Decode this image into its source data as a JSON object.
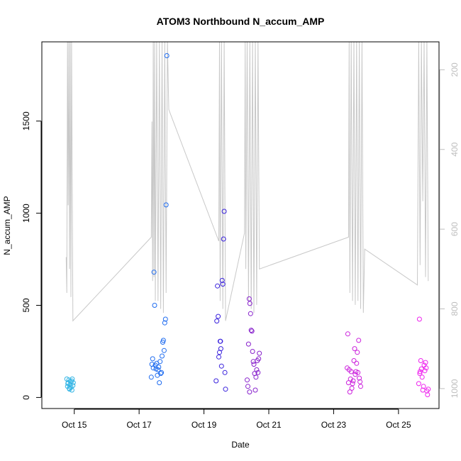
{
  "chart_data": {
    "type": "scatter",
    "title": "ATOM3 Northbound N_accum_AMP",
    "xlabel": "Date",
    "ylabel": "N_accum_AMP",
    "x_axis_type": "date",
    "xlim": [
      "2015-10-14 00:00",
      "2015-10-26 06:00"
    ],
    "x_ticks": [
      "2015-10-15",
      "2015-10-17",
      "2015-10-19",
      "2015-10-21",
      "2015-10-23",
      "2015-10-25"
    ],
    "x_tick_labels": [
      "Oct 15",
      "Oct 17",
      "Oct 19",
      "Oct 21",
      "Oct 23",
      "Oct 25"
    ],
    "ylim": [
      -60,
      1930
    ],
    "y_ticks": [
      0,
      500,
      1000,
      1500
    ],
    "y_tick_labels": [
      "0",
      "500",
      "1000",
      "1500"
    ],
    "y2_axis": {
      "reversed": true,
      "range": [
        130,
        1050
      ],
      "ticks": [
        200,
        400,
        600,
        800,
        1000
      ],
      "tick_labels": [
        "200",
        "400",
        "600",
        "800",
        "1000"
      ],
      "color": "#bebebe"
    },
    "grid": false,
    "legend": "none",
    "marker": "open-circle",
    "color_scale": [
      "#33b5e5",
      "#1f6cf0",
      "#2222cc",
      "#8822cc",
      "#cc22dd",
      "#ee22ee"
    ],
    "series": [
      {
        "color": "#33b5e5",
        "points": [
          [
            "2015-10-14 18:30",
            100
          ],
          [
            "2015-10-14 19:00",
            60
          ],
          [
            "2015-10-14 19:30",
            80
          ],
          [
            "2015-10-14 20:00",
            95
          ],
          [
            "2015-10-14 20:30",
            45
          ],
          [
            "2015-10-14 21:00",
            70
          ],
          [
            "2015-10-14 21:30",
            55
          ],
          [
            "2015-10-14 22:00",
            90
          ],
          [
            "2015-10-14 22:30",
            100
          ],
          [
            "2015-10-14 23:00",
            65
          ],
          [
            "2015-10-14 19:15",
            75
          ],
          [
            "2015-10-14 20:15",
            50
          ],
          [
            "2015-10-14 21:15",
            85
          ],
          [
            "2015-10-14 22:15",
            40
          ],
          [
            "2015-10-14 23:15",
            80
          ]
        ]
      },
      {
        "color": "#1f6cf0",
        "points": [
          [
            "2015-10-17 09:00",
            110
          ],
          [
            "2015-10-17 09:30",
            180
          ],
          [
            "2015-10-17 10:00",
            210
          ],
          [
            "2015-10-17 10:30",
            160
          ],
          [
            "2015-10-17 11:00",
            680
          ],
          [
            "2015-10-17 11:30",
            500
          ],
          [
            "2015-10-17 12:00",
            175
          ],
          [
            "2015-10-17 12:30",
            155
          ],
          [
            "2015-10-17 13:00",
            185
          ],
          [
            "2015-10-17 13:30",
            120
          ],
          [
            "2015-10-17 14:00",
            150
          ],
          [
            "2015-10-17 14:30",
            165
          ],
          [
            "2015-10-17 15:00",
            80
          ],
          [
            "2015-10-17 15:30",
            195
          ],
          [
            "2015-10-17 16:00",
            130
          ],
          [
            "2015-10-17 16:30",
            135
          ],
          [
            "2015-10-17 17:00",
            225
          ],
          [
            "2015-10-17 17:30",
            300
          ],
          [
            "2015-10-17 18:00",
            310
          ],
          [
            "2015-10-17 18:30",
            255
          ],
          [
            "2015-10-17 19:00",
            405
          ],
          [
            "2015-10-17 19:30",
            425
          ],
          [
            "2015-10-17 20:00",
            1045
          ],
          [
            "2015-10-17 20:30",
            1855
          ]
        ]
      },
      {
        "color": "#3a22dd",
        "points": [
          [
            "2015-10-19 09:00",
            90
          ],
          [
            "2015-10-19 09:30",
            415
          ],
          [
            "2015-10-19 10:00",
            605
          ],
          [
            "2015-10-19 10:30",
            440
          ],
          [
            "2015-10-19 11:00",
            220
          ],
          [
            "2015-10-19 11:30",
            245
          ],
          [
            "2015-10-19 12:00",
            305
          ],
          [
            "2015-10-19 12:30",
            265
          ],
          [
            "2015-10-19 13:00",
            170
          ],
          [
            "2015-10-19 13:30",
            635
          ],
          [
            "2015-10-19 14:00",
            615
          ],
          [
            "2015-10-19 14:30",
            860
          ],
          [
            "2015-10-19 15:00",
            1010
          ],
          [
            "2015-10-19 15:30",
            135
          ],
          [
            "2015-10-19 16:00",
            45
          ],
          [
            "2015-10-19 12:15",
            305
          ]
        ]
      },
      {
        "color": "#8822cc",
        "points": [
          [
            "2015-10-20 08:00",
            95
          ],
          [
            "2015-10-20 08:30",
            60
          ],
          [
            "2015-10-20 09:00",
            290
          ],
          [
            "2015-10-20 09:30",
            535
          ],
          [
            "2015-10-20 10:00",
            510
          ],
          [
            "2015-10-20 10:30",
            455
          ],
          [
            "2015-10-20 11:00",
            365
          ],
          [
            "2015-10-20 11:30",
            360
          ],
          [
            "2015-10-20 12:00",
            250
          ],
          [
            "2015-10-20 12:30",
            195
          ],
          [
            "2015-10-20 13:00",
            180
          ],
          [
            "2015-10-20 13:30",
            130
          ],
          [
            "2015-10-20 14:00",
            40
          ],
          [
            "2015-10-20 14:30",
            110
          ],
          [
            "2015-10-20 15:00",
            150
          ],
          [
            "2015-10-20 15:30",
            200
          ],
          [
            "2015-10-20 16:00",
            135
          ],
          [
            "2015-10-20 16:30",
            210
          ],
          [
            "2015-10-20 17:00",
            240
          ],
          [
            "2015-10-20 09:45",
            30
          ]
        ]
      },
      {
        "color": "#cc22dd",
        "points": [
          [
            "2015-10-23 10:00",
            160
          ],
          [
            "2015-10-23 10:30",
            345
          ],
          [
            "2015-10-23 11:00",
            80
          ],
          [
            "2015-10-23 11:30",
            150
          ],
          [
            "2015-10-23 12:00",
            30
          ],
          [
            "2015-10-23 12:30",
            100
          ],
          [
            "2015-10-23 13:00",
            140
          ],
          [
            "2015-10-23 13:30",
            50
          ],
          [
            "2015-10-23 14:00",
            75
          ],
          [
            "2015-10-23 14:30",
            90
          ],
          [
            "2015-10-23 15:00",
            200
          ],
          [
            "2015-10-23 15:30",
            265
          ],
          [
            "2015-10-23 16:00",
            125
          ],
          [
            "2015-10-23 16:30",
            140
          ],
          [
            "2015-10-23 17:00",
            185
          ],
          [
            "2015-10-23 17:30",
            245
          ],
          [
            "2015-10-23 18:00",
            135
          ],
          [
            "2015-10-23 18:30",
            310
          ],
          [
            "2015-10-23 19:00",
            105
          ],
          [
            "2015-10-23 19:30",
            85
          ],
          [
            "2015-10-23 20:00",
            60
          ]
        ]
      },
      {
        "color": "#ee22ee",
        "points": [
          [
            "2015-10-25 15:00",
            75
          ],
          [
            "2015-10-25 15:30",
            425
          ],
          [
            "2015-10-25 16:00",
            140
          ],
          [
            "2015-10-25 16:30",
            200
          ],
          [
            "2015-10-25 17:00",
            155
          ],
          [
            "2015-10-25 17:30",
            110
          ],
          [
            "2015-10-25 18:00",
            40
          ],
          [
            "2015-10-25 18:30",
            60
          ],
          [
            "2015-10-25 19:00",
            175
          ],
          [
            "2015-10-25 19:30",
            145
          ],
          [
            "2015-10-25 20:00",
            190
          ],
          [
            "2015-10-25 20:30",
            160
          ],
          [
            "2015-10-25 21:00",
            35
          ],
          [
            "2015-10-25 21:30",
            15
          ],
          [
            "2015-10-25 22:00",
            45
          ],
          [
            "2015-10-25 15:45",
            130
          ]
        ]
      }
    ],
    "secondary_line": {
      "color": "#c8c8c8",
      "axis": "right",
      "points": [
        [
          "2015-10-14 18:00",
          670
        ],
        [
          "2015-10-14 18:30",
          760
        ],
        [
          "2015-10-14 19:00",
          130
        ],
        [
          "2015-10-14 19:30",
          540
        ],
        [
          "2015-10-14 20:00",
          130
        ],
        [
          "2015-10-14 20:30",
          700
        ],
        [
          "2015-10-14 21:00",
          130
        ],
        [
          "2015-10-14 21:30",
          770
        ],
        [
          "2015-10-14 22:00",
          130
        ],
        [
          "2015-10-14 23:00",
          830
        ],
        [
          "2015-10-17 09:00",
          620
        ],
        [
          "2015-10-17 09:30",
          330
        ],
        [
          "2015-10-17 10:00",
          730
        ],
        [
          "2015-10-17 10:30",
          130
        ],
        [
          "2015-10-17 11:00",
          720
        ],
        [
          "2015-10-17 11:30",
          130
        ],
        [
          "2015-10-17 12:00",
          780
        ],
        [
          "2015-10-17 13:00",
          130
        ],
        [
          "2015-10-17 14:00",
          780
        ],
        [
          "2015-10-17 15:00",
          130
        ],
        [
          "2015-10-17 16:00",
          800
        ],
        [
          "2015-10-17 17:00",
          130
        ],
        [
          "2015-10-17 18:00",
          810
        ],
        [
          "2015-10-17 19:00",
          130
        ],
        [
          "2015-10-17 20:00",
          760
        ],
        [
          "2015-10-17 21:00",
          130
        ],
        [
          "2015-10-17 22:00",
          300
        ],
        [
          "2015-10-19 11:00",
          630
        ],
        [
          "2015-10-19 11:30",
          130
        ],
        [
          "2015-10-19 12:00",
          780
        ],
        [
          "2015-10-19 13:00",
          130
        ],
        [
          "2015-10-19 14:00",
          800
        ],
        [
          "2015-10-19 15:00",
          130
        ],
        [
          "2015-10-19 16:00",
          830
        ],
        [
          "2015-10-20 06:00",
          610
        ],
        [
          "2015-10-20 06:30",
          130
        ],
        [
          "2015-10-20 07:00",
          700
        ],
        [
          "2015-10-20 08:00",
          130
        ],
        [
          "2015-10-20 09:00",
          780
        ],
        [
          "2015-10-20 10:00",
          130
        ],
        [
          "2015-10-20 11:00",
          800
        ],
        [
          "2015-10-20 12:00",
          130
        ],
        [
          "2015-10-20 13:00",
          810
        ],
        [
          "2015-10-20 14:00",
          130
        ],
        [
          "2015-10-20 15:00",
          790
        ],
        [
          "2015-10-20 16:00",
          130
        ],
        [
          "2015-10-20 17:00",
          700
        ],
        [
          "2015-10-23 11:00",
          620
        ],
        [
          "2015-10-23 11:30",
          130
        ],
        [
          "2015-10-23 12:00",
          760
        ],
        [
          "2015-10-23 13:00",
          130
        ],
        [
          "2015-10-23 14:00",
          780
        ],
        [
          "2015-10-23 15:00",
          130
        ],
        [
          "2015-10-23 16:00",
          790
        ],
        [
          "2015-10-23 17:00",
          130
        ],
        [
          "2015-10-23 18:00",
          780
        ],
        [
          "2015-10-23 19:00",
          130
        ],
        [
          "2015-10-23 20:00",
          800
        ],
        [
          "2015-10-23 21:00",
          130
        ],
        [
          "2015-10-23 22:00",
          810
        ],
        [
          "2015-10-23 23:00",
          650
        ],
        [
          "2015-10-25 14:00",
          740
        ],
        [
          "2015-10-25 15:00",
          130
        ],
        [
          "2015-10-25 16:00",
          690
        ],
        [
          "2015-10-25 17:00",
          130
        ],
        [
          "2015-10-25 18:00",
          530
        ],
        [
          "2015-10-25 19:00",
          130
        ],
        [
          "2015-10-25 20:00",
          720
        ],
        [
          "2015-10-25 21:00",
          130
        ],
        [
          "2015-10-25 22:00",
          730
        ]
      ]
    }
  }
}
